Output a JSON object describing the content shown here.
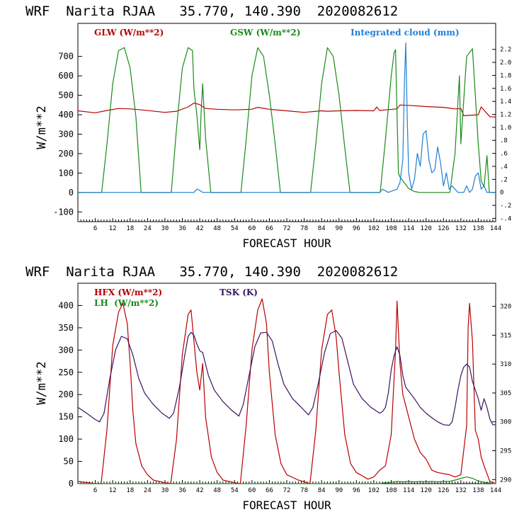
{
  "colors": {
    "red": "#b80000",
    "green": "#1a8a1a",
    "blue": "#1e7fd6",
    "purple": "#3a1460",
    "black": "#000000"
  },
  "chart_data": [
    {
      "type": "line",
      "title": "WRF  Narita RJAA   35.770, 140.390  2020082612",
      "xlabel": "FORECAST HOUR",
      "ylabel": "W/m**2",
      "xlim": [
        0,
        144
      ],
      "ylim": [
        -150,
        870
      ],
      "y2lim": [
        -0.45,
        2.6
      ],
      "x_ticks": [
        6,
        12,
        18,
        24,
        30,
        36,
        42,
        48,
        54,
        60,
        66,
        72,
        78,
        84,
        90,
        96,
        102,
        108,
        114,
        120,
        126,
        132,
        138,
        144
      ],
      "y_ticks": [
        -100,
        0,
        100,
        200,
        300,
        400,
        500,
        600,
        700
      ],
      "y2_ticks": [
        "-.4",
        "-.2",
        "0",
        ".2",
        ".4",
        ".6",
        ".8",
        "1.0",
        "1.2",
        "1.4",
        "1.6",
        "1.8",
        "2.0",
        "2.2"
      ],
      "y2_tick_values": [
        -0.4,
        -0.2,
        0,
        0.2,
        0.4,
        0.6,
        0.8,
        1.0,
        1.2,
        1.4,
        1.6,
        1.8,
        2.0,
        2.2
      ],
      "legend": [
        {
          "label": "GLW (W/m**2)",
          "color": "#b80000"
        },
        {
          "label": "GSW (W/m**2)",
          "color": "#1a8a1a"
        },
        {
          "label": "Integrated cloud (mm)",
          "color": "#1e7fd6"
        }
      ],
      "series": [
        {
          "name": "GLW (W/m**2)",
          "axis": "left",
          "color": "#b80000",
          "x": [
            0,
            6,
            10,
            14,
            18,
            22,
            30,
            34,
            38,
            40,
            42,
            44,
            48,
            54,
            60,
            62,
            66,
            72,
            78,
            84,
            86,
            90,
            96,
            102,
            103,
            104,
            106,
            110,
            111,
            114,
            120,
            126,
            130,
            132,
            133,
            136,
            138,
            139,
            142,
            144
          ],
          "y": [
            420,
            410,
            422,
            432,
            430,
            425,
            412,
            418,
            440,
            460,
            452,
            432,
            428,
            425,
            428,
            438,
            428,
            420,
            412,
            420,
            418,
            420,
            422,
            420,
            440,
            422,
            425,
            430,
            450,
            448,
            442,
            438,
            430,
            432,
            395,
            398,
            400,
            440,
            390,
            388
          ]
        },
        {
          "name": "GSW (W/m**2)",
          "axis": "left",
          "color": "#1a8a1a",
          "x": [
            0,
            8.2,
            10,
            12,
            14,
            16,
            18,
            20,
            21.8,
            32.2,
            34,
            36,
            38,
            39.5,
            40,
            41,
            42,
            42.5,
            43,
            44,
            45.8,
            56.2,
            58,
            60,
            62,
            64,
            66,
            68,
            69.8,
            80.2,
            82,
            84,
            86,
            88,
            90,
            92,
            93.8,
            104.2,
            106,
            108,
            109,
            109.5,
            110,
            110.5,
            111,
            112,
            114,
            116,
            117.8,
            128.2,
            130,
            131.5,
            132,
            134,
            136,
            137,
            138,
            139,
            140,
            141,
            141.8,
            144
          ],
          "y": [
            0,
            0,
            247,
            560,
            730,
            745,
            640,
            390,
            0,
            0,
            330,
            640,
            745,
            730,
            530,
            400,
            220,
            420,
            560,
            280,
            0,
            0,
            270,
            600,
            745,
            700,
            500,
            250,
            0,
            0,
            250,
            560,
            745,
            700,
            500,
            230,
            0,
            0,
            270,
            600,
            720,
            735,
            400,
            100,
            80,
            60,
            20,
            5,
            0,
            0,
            200,
            600,
            250,
            700,
            740,
            500,
            250,
            60,
            30,
            190,
            0,
            0
          ]
        },
        {
          "name": "Integrated cloud (mm)",
          "axis": "right",
          "color": "#1e7fd6",
          "x": [
            0,
            40,
            41,
            42,
            43,
            104,
            105,
            107,
            110,
            111,
            112,
            112.5,
            113,
            113.5,
            114,
            115,
            116,
            117,
            118,
            119,
            120,
            121,
            122,
            123,
            124,
            125,
            126,
            127,
            128,
            129,
            130,
            131,
            133,
            134,
            135,
            136,
            137,
            138,
            139,
            140,
            141,
            144
          ],
          "y": [
            0,
            0,
            0.05,
            0.03,
            0,
            0,
            0.05,
            0,
            0.05,
            0.15,
            0.5,
            1.6,
            2.3,
            1.2,
            0.3,
            0.05,
            0.2,
            0.6,
            0.4,
            0.9,
            0.95,
            0.5,
            0.3,
            0.35,
            0.7,
            0.45,
            0.1,
            0.3,
            0.05,
            0.1,
            0.05,
            0.0,
            0.0,
            0.1,
            0.0,
            0.05,
            0.25,
            0.3,
            0.05,
            0.1,
            0.0,
            0.0
          ]
        }
      ]
    },
    {
      "type": "line",
      "title": "WRF  Narita RJAA   35.770, 140.390  2020082612",
      "xlabel": "FORECAST HOUR",
      "ylabel": "W/m**2",
      "xlim": [
        0,
        144
      ],
      "ylim": [
        0,
        450
      ],
      "y2lim": [
        289.3,
        324
      ],
      "x_ticks": [
        6,
        12,
        18,
        24,
        30,
        36,
        42,
        48,
        54,
        60,
        66,
        72,
        78,
        84,
        90,
        96,
        102,
        108,
        114,
        120,
        126,
        132,
        138,
        144
      ],
      "y_ticks": [
        0,
        50,
        100,
        150,
        200,
        250,
        300,
        350,
        400
      ],
      "y2_ticks": [
        "290",
        "295",
        "300",
        "305",
        "310",
        "315",
        "320"
      ],
      "y2_tick_values": [
        290,
        295,
        300,
        305,
        310,
        315,
        320
      ],
      "legend": [
        {
          "label": "HFX (W/m**2)",
          "color": "#b80000"
        },
        {
          "label": "LH  (W/m**2)",
          "color": "#1a8a1a"
        },
        {
          "label": "TSK (K)",
          "color": "#3a1460"
        }
      ],
      "series": [
        {
          "name": "HFX (W/m**2)",
          "axis": "left",
          "color": "#b80000",
          "x": [
            0,
            6,
            8,
            10,
            12,
            14,
            15.5,
            17,
            18,
            19,
            20,
            22,
            24,
            26,
            30,
            32,
            34,
            36,
            38,
            39,
            40,
            41,
            42,
            43,
            44,
            46,
            48,
            50,
            54,
            56,
            58,
            60,
            62,
            63.5,
            65,
            66,
            68,
            70,
            72,
            76,
            80,
            82,
            84,
            86,
            87.5,
            89,
            90,
            92,
            94,
            96,
            100,
            102,
            104,
            106,
            108,
            109.5,
            110,
            111,
            112,
            114,
            116,
            118,
            120,
            122,
            124,
            128,
            130,
            132,
            134,
            134.5,
            135,
            136,
            137,
            138,
            139,
            140,
            142,
            144
          ],
          "y": [
            5,
            0,
            0,
            120,
            310,
            385,
            405,
            360,
            270,
            160,
            90,
            40,
            20,
            8,
            2,
            0,
            100,
            290,
            380,
            390,
            320,
            250,
            210,
            270,
            150,
            60,
            25,
            8,
            2,
            0,
            130,
            300,
            390,
            415,
            360,
            250,
            110,
            45,
            20,
            8,
            0,
            120,
            300,
            380,
            390,
            330,
            250,
            110,
            45,
            25,
            10,
            15,
            30,
            40,
            110,
            300,
            410,
            270,
            200,
            150,
            100,
            70,
            55,
            30,
            25,
            20,
            15,
            20,
            130,
            350,
            405,
            320,
            120,
            100,
            60,
            40,
            5,
            0
          ]
        },
        {
          "name": "LH  (W/m**2)",
          "axis": "left",
          "color": "#1a8a1a",
          "x": [
            0,
            104,
            106,
            108,
            110,
            112,
            114,
            116,
            118,
            120,
            122,
            124,
            126,
            128,
            130,
            132,
            134,
            136,
            138,
            140,
            142,
            144
          ],
          "y": [
            0,
            0,
            2,
            3,
            5,
            4,
            5,
            4,
            5,
            4,
            5,
            4,
            5,
            5,
            8,
            12,
            15,
            12,
            6,
            3,
            1,
            0
          ]
        },
        {
          "name": "TSK (K)",
          "axis": "right",
          "color": "#3a1460",
          "x": [
            0,
            3,
            6,
            7.5,
            9,
            11,
            13,
            15,
            17,
            19,
            21,
            23,
            26,
            29,
            31.5,
            33,
            35,
            37,
            38,
            39,
            40,
            41,
            42,
            43,
            45,
            47,
            50,
            53,
            55.5,
            57,
            59,
            61,
            63,
            65,
            67,
            69,
            71,
            74,
            77,
            79.5,
            81,
            83,
            85,
            87,
            89,
            91,
            93,
            95,
            98,
            101,
            104,
            105,
            106,
            107,
            108,
            109,
            110,
            111,
            112,
            113,
            116,
            118,
            120,
            122,
            124,
            126,
            128,
            129,
            130,
            131,
            132,
            133,
            134,
            135,
            136,
            137,
            138,
            139,
            140,
            141,
            142,
            143,
            144
          ],
          "y": [
            302.5,
            301.5,
            300.4,
            300.0,
            301.5,
            307.5,
            312.5,
            314.8,
            314.4,
            311.5,
            307.5,
            305.0,
            303.0,
            301.5,
            300.6,
            301.5,
            306.0,
            312.0,
            314.8,
            315.5,
            315.0,
            313.5,
            312.3,
            312.0,
            308.0,
            305.5,
            303.5,
            302.0,
            301.0,
            303.0,
            308.0,
            313.0,
            315.4,
            315.5,
            314.0,
            310.0,
            306.5,
            304.0,
            302.5,
            301.2,
            302.5,
            307.0,
            312.0,
            315.3,
            315.8,
            314.5,
            310.5,
            306.5,
            304.0,
            302.5,
            301.5,
            301.8,
            302.5,
            305.0,
            309.0,
            311.5,
            313.0,
            311.5,
            308.0,
            306.0,
            304.0,
            302.5,
            301.5,
            300.7,
            300.0,
            299.5,
            299.4,
            300.0,
            302.5,
            305.5,
            308.0,
            309.5,
            310.0,
            309.5,
            307.0,
            305.5,
            304.0,
            302.0,
            304.0,
            302.5,
            300.5,
            299.5,
            299.5
          ]
        }
      ]
    }
  ]
}
